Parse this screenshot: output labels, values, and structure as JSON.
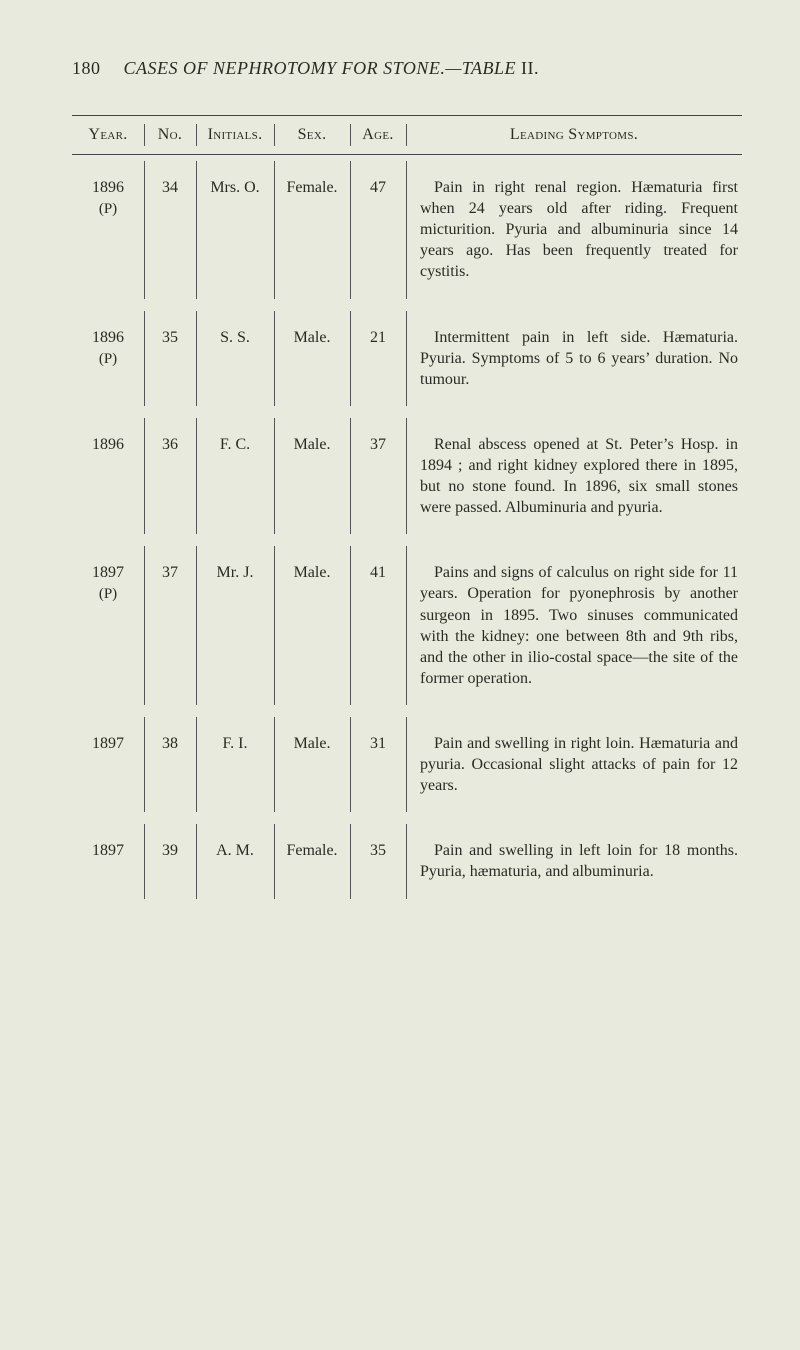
{
  "page_number": "180",
  "running_title_italic": "CASES OF NEPHROTOMY FOR STONE.—TABLE",
  "running_title_tail": " II.",
  "headers": {
    "year": "Year.",
    "no": "No.",
    "initials": "Initials.",
    "sex": "Sex.",
    "age": "Age.",
    "symptoms": "Leading Symptoms."
  },
  "rows": [
    {
      "year": "1896",
      "year_sub": "(P)",
      "no": "34",
      "initials": "Mrs. O.",
      "sex": "Female.",
      "age": "47",
      "symptoms": "Pain in right renal region. Hæmaturia first when 24 years old after riding. Frequent micturition. Pyuria and albuminuria since 14 years ago. Has been frequently treated for cystitis."
    },
    {
      "year": "1896",
      "year_sub": "(P)",
      "no": "35",
      "initials": "S. S.",
      "sex": "Male.",
      "age": "21",
      "symptoms": "Intermittent pain in left side. Hæmaturia. Pyuria. Symptoms of 5 to 6 years’ duration. No tumour."
    },
    {
      "year": "1896",
      "year_sub": "",
      "no": "36",
      "initials": "F. C.",
      "sex": "Male.",
      "age": "37",
      "symptoms": "Renal abscess opened at St. Peter’s Hosp. in 1894 ; and right kidney explored there in 1895, but no stone found. In 1896, six small stones were passed. Albuminuria and pyuria."
    },
    {
      "year": "1897",
      "year_sub": "(P)",
      "no": "37",
      "initials": "Mr. J.",
      "sex": "Male.",
      "age": "41",
      "symptoms": "Pains and signs of calculus on right side for 11 years. Operation for pyonephrosis by another surgeon in 1895. Two sinuses communicated with the kidney: one between 8th and 9th ribs, and the other in ilio-costal space—the site of the former operation."
    },
    {
      "year": "1897",
      "year_sub": "",
      "no": "38",
      "initials": "F. I.",
      "sex": "Male.",
      "age": "31",
      "symptoms": "Pain and swelling in right loin. Hæmaturia and pyuria. Occasional slight attacks of pain for 12 years."
    },
    {
      "year": "1897",
      "year_sub": "",
      "no": "39",
      "initials": "A. M.",
      "sex": "Female.",
      "age": "35",
      "symptoms": "Pain and swelling in left loin for 18 months. Pyuria, hæmaturia, and albuminuria."
    }
  ]
}
